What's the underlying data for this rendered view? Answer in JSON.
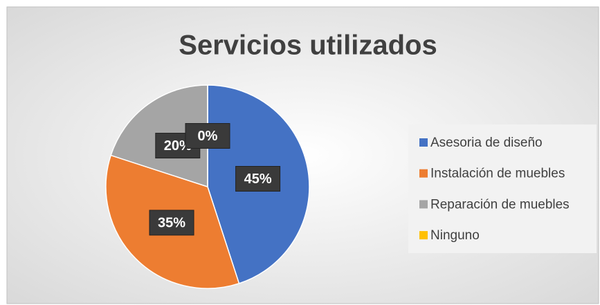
{
  "chart_data": {
    "type": "pie",
    "title": "Servicios utilizados",
    "categories": [
      "Asesoria de diseño",
      "Instalación de muebles",
      "Reparación de muebles",
      "Ninguno"
    ],
    "values": [
      45,
      35,
      20,
      0
    ],
    "value_labels": [
      "45%",
      "35%",
      "20%",
      "0%"
    ],
    "colors": [
      "#4472c4",
      "#ed7d31",
      "#a5a5a5",
      "#ffc000"
    ],
    "legend": "right"
  }
}
